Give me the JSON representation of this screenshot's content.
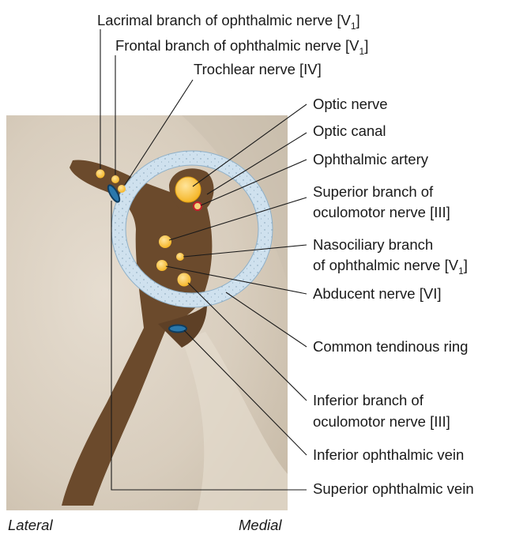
{
  "labels": {
    "lacrimal": {
      "text": "Lacrimal branch of ophthalmic nerve [V",
      "sub": "1",
      "close": "]"
    },
    "frontal": {
      "text": "Frontal branch of ophthalmic nerve [V",
      "sub": "1",
      "close": "]"
    },
    "trochlear": "Trochlear nerve [IV]",
    "optic_nerve": "Optic nerve",
    "optic_canal": "Optic canal",
    "ophthalmic_artery": "Ophthalmic artery",
    "sup_oculomotor_1": "Superior branch of",
    "sup_oculomotor_2": "oculomotor nerve [III]",
    "nasociliary_1": "Nasociliary branch",
    "nasociliary_2": {
      "text": "of ophthalmic nerve [V",
      "sub": "1",
      "close": "]"
    },
    "abducent": "Abducent nerve [VI]",
    "common_ring": "Common tendinous ring",
    "inf_oculomotor_1": "Inferior branch of",
    "inf_oculomotor_2": "oculomotor nerve [III]",
    "inf_ophthalmic_vein": "Inferior ophthalmic vein",
    "sup_ophthalmic_vein": "Superior ophthalmic vein"
  },
  "orientation": {
    "lateral": "Lateral",
    "medial": "Medial"
  },
  "colors": {
    "bone": "#d9cfc0",
    "fissure": "#6b4a2c",
    "ring": "#cfe0ec",
    "nerve": "#f9c23a",
    "vein": "#1d5a86",
    "artery": "#c8202c"
  }
}
